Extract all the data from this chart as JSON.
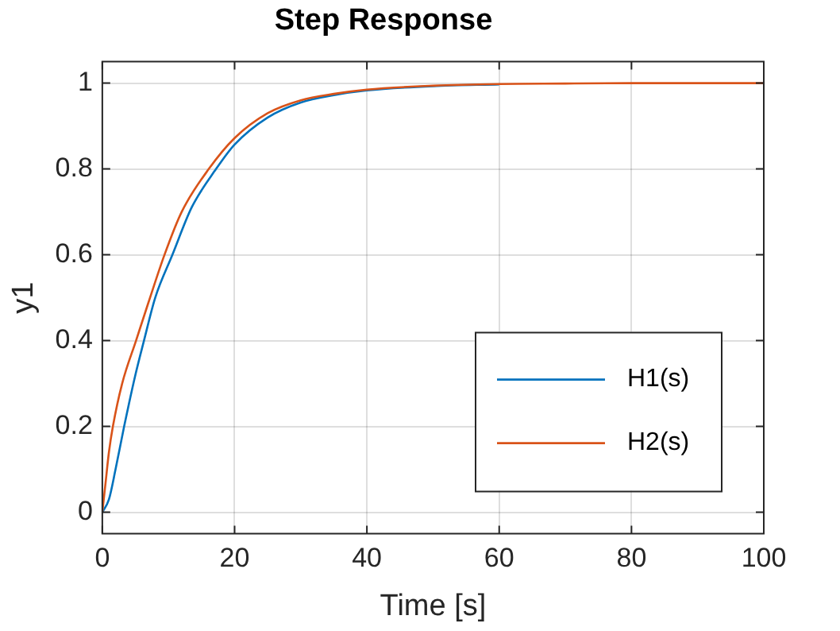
{
  "chart_data": {
    "type": "line",
    "title": "Step Response",
    "xlabel": "Time [s]",
    "ylabel": "y1",
    "series": [
      {
        "name": "H1(s)",
        "color": "#0072bd",
        "x": [
          0,
          1,
          2,
          3.3,
          5,
          6.3,
          8,
          10.6,
          13.5,
          17.2,
          20,
          25,
          30,
          35,
          40,
          50,
          60
        ],
        "values": [
          0,
          0.03,
          0.1,
          0.2,
          0.32,
          0.4,
          0.5,
          0.6,
          0.71,
          0.8,
          0.857,
          0.92,
          0.955,
          0.972,
          0.983,
          0.993,
          0.997
        ]
      },
      {
        "name": "H2(s)",
        "color": "#d95319",
        "x": [
          0,
          0.5,
          1,
          1.6,
          3,
          5.1,
          7,
          9.4,
          12,
          16.1,
          20,
          25,
          30,
          35,
          40,
          50,
          60,
          70,
          80,
          100
        ],
        "values": [
          0,
          0.07,
          0.14,
          0.2,
          0.3,
          0.4,
          0.49,
          0.6,
          0.7,
          0.8,
          0.872,
          0.93,
          0.96,
          0.975,
          0.985,
          0.994,
          0.998,
          0.999,
          1,
          1
        ]
      }
    ],
    "xlim": [
      0,
      100
    ],
    "xticks": [
      0,
      20,
      40,
      60,
      80,
      100
    ],
    "ylim": [
      -0.05,
      1.05
    ],
    "yticks": [
      0,
      0.2,
      0.4,
      0.6,
      0.8,
      1
    ],
    "grid": true,
    "legend": "bottom right",
    "marker": "none",
    "line_style": "solid"
  }
}
